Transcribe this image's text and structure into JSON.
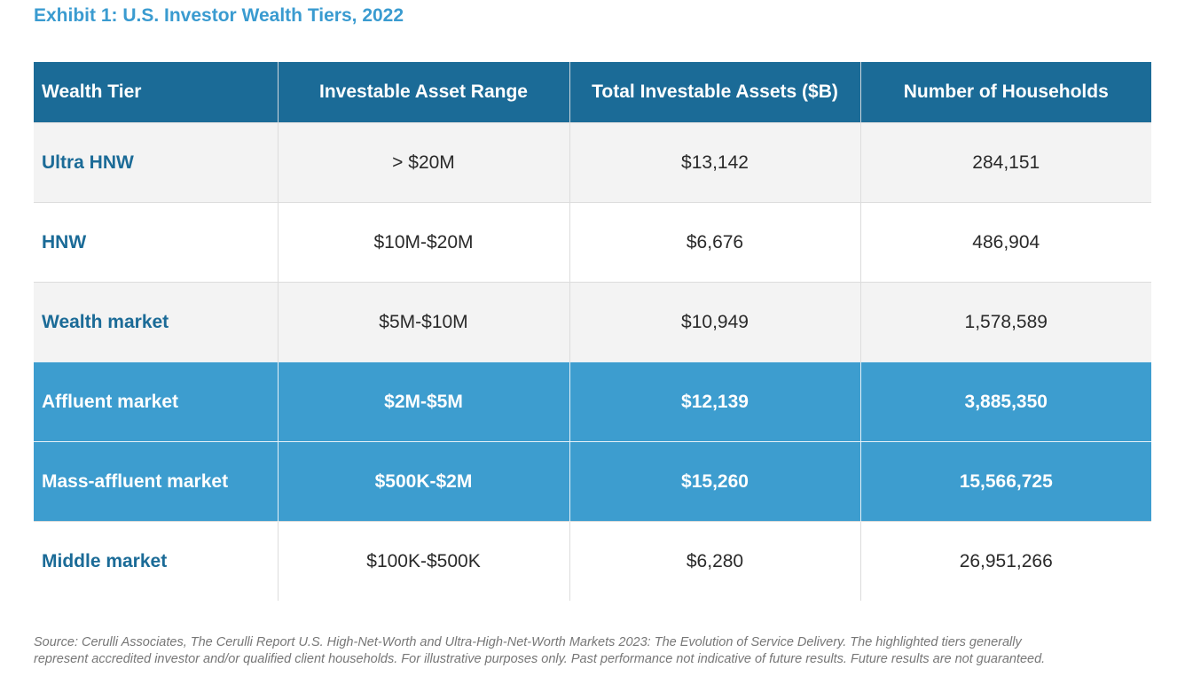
{
  "header": {
    "title": "Exhibit 1: U.S. Investor Wealth Tiers, 2022"
  },
  "table": {
    "columns": [
      "Wealth Tier",
      "Investable Asset Range",
      "Total Investable Assets ($B)",
      "Number of Households"
    ],
    "rows": [
      [
        "Ultra HNW",
        "> $20M",
        "$13,142",
        "284,151"
      ],
      [
        "HNW",
        "$10M-$20M",
        "$6,676",
        "486,904"
      ],
      [
        "Wealth market",
        "$5M-$10M",
        "$10,949",
        "1,578,589"
      ],
      [
        "Affluent market",
        "$2M-$5M",
        "$12,139",
        "3,885,350"
      ],
      [
        "Mass-affluent market",
        "$500K-$2M",
        "$15,260",
        "15,566,725"
      ],
      [
        "Middle market",
        "$100K-$500K",
        "$6,280",
        "26,951,266"
      ]
    ]
  },
  "footnote": [
    "Source: Cerulli Associates, The Cerulli Report U.S. High-Net-Worth and Ultra-High-Net-Worth Markets 2023: The Evolution of Service Delivery. The highlighted tiers generally",
    "represent accredited investor and/or qualified client households. For illustrative purposes only. Past performance not indicative of future results. Future results are not guaranteed."
  ]
}
